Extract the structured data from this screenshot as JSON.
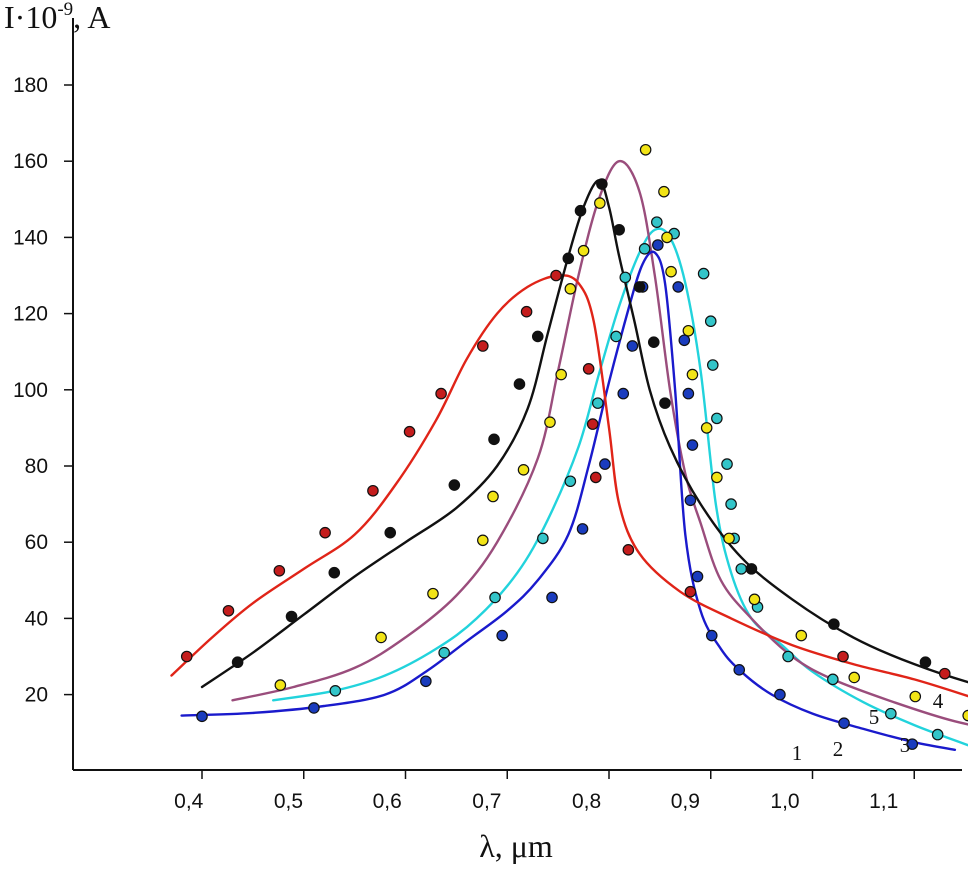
{
  "chart_data": {
    "type": "line",
    "xlabel": "λ, μm",
    "ylabel": "I·10",
    "ylabel_exponent": "-9",
    "ylabel_unit": ", A",
    "xlim": [
      0.33,
      1.35
    ],
    "ylim": [
      0,
      195
    ],
    "x_ticks": [
      0.4,
      0.5,
      0.6,
      0.7,
      0.8,
      0.9,
      1.0,
      1.1
    ],
    "x_tick_labels": [
      "0,4",
      "0,5",
      "0,6",
      "0,7",
      "0,8",
      "0,9",
      "1,0",
      "1,1"
    ],
    "y_ticks": [
      20,
      40,
      60,
      80,
      100,
      120,
      140,
      160,
      180
    ],
    "y_tick_labels": [
      "20",
      "40",
      "60",
      "80",
      "100",
      "120",
      "140",
      "160",
      "180"
    ],
    "grid": false,
    "series": [
      {
        "name": "1",
        "color": "#1a1acc",
        "marker_color": "#1a3cbe",
        "line": [
          [
            0.38,
            14.5
          ],
          [
            0.45,
            15.2
          ],
          [
            0.52,
            17
          ],
          [
            0.58,
            20
          ],
          [
            0.62,
            26
          ],
          [
            0.66,
            34
          ],
          [
            0.7,
            42
          ],
          [
            0.73,
            50
          ],
          [
            0.76,
            62
          ],
          [
            0.78,
            80
          ],
          [
            0.8,
            102
          ],
          [
            0.82,
            122
          ],
          [
            0.833,
            133
          ],
          [
            0.845,
            136
          ],
          [
            0.855,
            128
          ],
          [
            0.865,
            100
          ],
          [
            0.875,
            62
          ],
          [
            0.89,
            42
          ],
          [
            0.91,
            32
          ],
          [
            0.93,
            26
          ],
          [
            0.96,
            20
          ],
          [
            1.0,
            15
          ],
          [
            1.05,
            11
          ],
          [
            1.1,
            7.5
          ],
          [
            1.14,
            5.5
          ]
        ],
        "points": [
          [
            0.4,
            14.3
          ],
          [
            0.51,
            16.5
          ],
          [
            0.62,
            23.5
          ],
          [
            0.695,
            35.5
          ],
          [
            0.744,
            45.5
          ],
          [
            0.774,
            63.5
          ],
          [
            0.796,
            80.5
          ],
          [
            0.814,
            99
          ],
          [
            0.823,
            111.5
          ],
          [
            0.833,
            127
          ],
          [
            0.848,
            138
          ],
          [
            0.868,
            127
          ],
          [
            0.874,
            113
          ],
          [
            0.878,
            99
          ],
          [
            0.882,
            85.5
          ],
          [
            0.88,
            71
          ],
          [
            0.887,
            51
          ],
          [
            0.901,
            35.5
          ],
          [
            0.928,
            26.5
          ],
          [
            0.968,
            20
          ],
          [
            1.031,
            12.5
          ],
          [
            1.098,
            7
          ]
        ]
      },
      {
        "name": "2",
        "color": "#22d3dc",
        "marker_color": "#33c5c9",
        "line": [
          [
            0.47,
            18.5
          ],
          [
            0.53,
            21
          ],
          [
            0.58,
            25
          ],
          [
            0.63,
            32
          ],
          [
            0.67,
            40
          ],
          [
            0.71,
            52
          ],
          [
            0.74,
            66
          ],
          [
            0.77,
            85
          ],
          [
            0.79,
            104
          ],
          [
            0.81,
            122
          ],
          [
            0.83,
            136
          ],
          [
            0.845,
            142
          ],
          [
            0.86,
            140
          ],
          [
            0.875,
            128
          ],
          [
            0.89,
            105
          ],
          [
            0.905,
            70
          ],
          [
            0.92,
            52
          ],
          [
            0.94,
            40
          ],
          [
            0.97,
            33
          ],
          [
            1.0,
            26
          ],
          [
            1.05,
            18
          ],
          [
            1.1,
            12
          ],
          [
            1.15,
            7
          ],
          [
            1.17,
            5
          ]
        ],
        "points": [
          [
            0.531,
            21
          ],
          [
            0.638,
            31
          ],
          [
            0.688,
            45.5
          ],
          [
            0.735,
            61
          ],
          [
            0.762,
            76
          ],
          [
            0.789,
            96.5
          ],
          [
            0.807,
            114
          ],
          [
            0.816,
            129.5
          ],
          [
            0.835,
            137
          ],
          [
            0.847,
            144
          ],
          [
            0.864,
            141
          ],
          [
            0.893,
            130.5
          ],
          [
            0.9,
            118
          ],
          [
            0.902,
            106.5
          ],
          [
            0.906,
            92.5
          ],
          [
            0.916,
            80.5
          ],
          [
            0.92,
            70
          ],
          [
            0.923,
            61
          ],
          [
            0.93,
            53
          ],
          [
            0.946,
            43
          ],
          [
            0.976,
            30
          ],
          [
            1.02,
            24
          ],
          [
            1.077,
            15
          ],
          [
            1.123,
            9.5
          ]
        ]
      },
      {
        "name": "3",
        "color": "#9a4d7c",
        "marker_color": "#f2e416",
        "line": [
          [
            0.43,
            18.5
          ],
          [
            0.49,
            22
          ],
          [
            0.55,
            27
          ],
          [
            0.6,
            35
          ],
          [
            0.65,
            46
          ],
          [
            0.69,
            60
          ],
          [
            0.73,
            82
          ],
          [
            0.75,
            105
          ],
          [
            0.77,
            130
          ],
          [
            0.79,
            150
          ],
          [
            0.81,
            160
          ],
          [
            0.83,
            152
          ],
          [
            0.845,
            130
          ],
          [
            0.86,
            100
          ],
          [
            0.875,
            78
          ],
          [
            0.89,
            65
          ],
          [
            0.91,
            50
          ],
          [
            0.94,
            40
          ],
          [
            0.98,
            30
          ],
          [
            1.02,
            24
          ],
          [
            1.08,
            18
          ],
          [
            1.14,
            13
          ],
          [
            1.2,
            10
          ],
          [
            1.28,
            8
          ]
        ],
        "points": [
          [
            0.477,
            22.5
          ],
          [
            0.576,
            35
          ],
          [
            0.627,
            46.5
          ],
          [
            0.676,
            60.5
          ],
          [
            0.686,
            72
          ],
          [
            0.716,
            79
          ],
          [
            0.742,
            91.5
          ],
          [
            0.753,
            104
          ],
          [
            0.762,
            126.5
          ],
          [
            0.775,
            136.5
          ],
          [
            0.791,
            149
          ],
          [
            0.836,
            163
          ],
          [
            0.854,
            152
          ],
          [
            0.857,
            140
          ],
          [
            0.861,
            131
          ],
          [
            0.878,
            115.5
          ],
          [
            0.882,
            104
          ],
          [
            0.896,
            90
          ],
          [
            0.906,
            77
          ],
          [
            0.918,
            61
          ],
          [
            0.943,
            45
          ],
          [
            0.989,
            35.5
          ],
          [
            1.041,
            24.5
          ],
          [
            1.101,
            19.5
          ],
          [
            1.153,
            14.5
          ],
          [
            1.222,
            10
          ]
        ]
      },
      {
        "name": "4",
        "color": "#111111",
        "marker_color": "#111111",
        "line": [
          [
            0.4,
            22
          ],
          [
            0.45,
            31
          ],
          [
            0.5,
            41
          ],
          [
            0.55,
            51
          ],
          [
            0.6,
            60
          ],
          [
            0.65,
            69
          ],
          [
            0.69,
            80
          ],
          [
            0.72,
            95
          ],
          [
            0.74,
            115
          ],
          [
            0.76,
            135
          ],
          [
            0.775,
            148
          ],
          [
            0.79,
            155
          ],
          [
            0.8,
            148
          ],
          [
            0.81,
            135
          ],
          [
            0.825,
            118
          ],
          [
            0.84,
            100
          ],
          [
            0.86,
            85
          ],
          [
            0.89,
            70
          ],
          [
            0.93,
            56
          ],
          [
            0.98,
            45
          ],
          [
            1.04,
            35
          ],
          [
            1.1,
            28
          ],
          [
            1.17,
            22
          ],
          [
            1.24,
            18
          ],
          [
            1.3,
            15
          ]
        ],
        "points": [
          [
            0.435,
            28.5
          ],
          [
            0.488,
            40.5
          ],
          [
            0.53,
            52
          ],
          [
            0.585,
            62.5
          ],
          [
            0.648,
            75
          ],
          [
            0.687,
            87
          ],
          [
            0.712,
            101.5
          ],
          [
            0.73,
            114
          ],
          [
            0.76,
            134.5
          ],
          [
            0.772,
            147
          ],
          [
            0.793,
            154
          ],
          [
            0.81,
            142
          ],
          [
            0.83,
            127
          ],
          [
            0.844,
            112.5
          ],
          [
            0.855,
            96.5
          ],
          [
            0.94,
            53
          ],
          [
            1.021,
            38.5
          ],
          [
            1.111,
            28.5
          ],
          [
            1.172,
            21
          ],
          [
            1.256,
            17
          ]
        ]
      },
      {
        "name": "5",
        "color": "#e02418",
        "marker_color": "#c41d1d",
        "line": [
          [
            0.37,
            25
          ],
          [
            0.41,
            35
          ],
          [
            0.45,
            44
          ],
          [
            0.5,
            53
          ],
          [
            0.55,
            62
          ],
          [
            0.59,
            75
          ],
          [
            0.63,
            92
          ],
          [
            0.66,
            108
          ],
          [
            0.69,
            120
          ],
          [
            0.72,
            127
          ],
          [
            0.75,
            130
          ],
          [
            0.77,
            128
          ],
          [
            0.785,
            118
          ],
          [
            0.8,
            90
          ],
          [
            0.81,
            70
          ],
          [
            0.83,
            57
          ],
          [
            0.87,
            47
          ],
          [
            0.92,
            40
          ],
          [
            0.98,
            33
          ],
          [
            1.04,
            28
          ],
          [
            1.1,
            24
          ],
          [
            1.16,
            19
          ],
          [
            1.23,
            13
          ]
        ],
        "points": [
          [
            0.385,
            30
          ],
          [
            0.426,
            42
          ],
          [
            0.476,
            52.5
          ],
          [
            0.521,
            62.5
          ],
          [
            0.568,
            73.5
          ],
          [
            0.604,
            89
          ],
          [
            0.635,
            99
          ],
          [
            0.676,
            111.5
          ],
          [
            0.719,
            120.5
          ],
          [
            0.748,
            130
          ],
          [
            0.78,
            105.5
          ],
          [
            0.784,
            91
          ],
          [
            0.787,
            77
          ],
          [
            0.819,
            58
          ],
          [
            0.88,
            47
          ],
          [
            1.03,
            30
          ],
          [
            1.13,
            25.5
          ],
          [
            1.204,
            19.5
          ]
        ]
      }
    ]
  }
}
